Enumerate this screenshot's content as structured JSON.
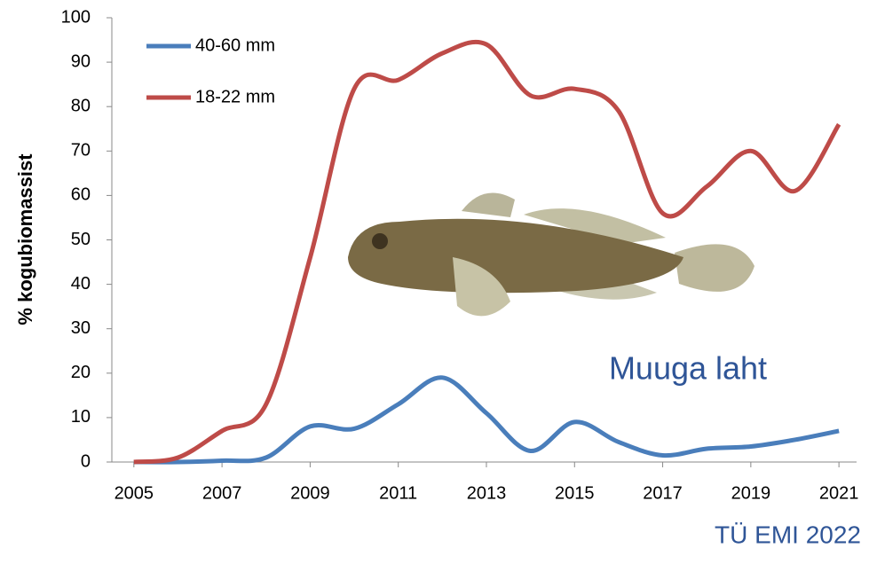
{
  "chart_data": {
    "type": "line",
    "y_label": "% kogubiomassist",
    "annotation": "Muuga laht",
    "source": "TÜ EMI 2022",
    "x": [
      2005,
      2006,
      2007,
      2008,
      2009,
      2010,
      2011,
      2012,
      2013,
      2014,
      2015,
      2016,
      2017,
      2018,
      2019,
      2020,
      2021
    ],
    "series": [
      {
        "name": "40-60 mm",
        "color": "#4a7ebb",
        "values": [
          0,
          0,
          0.3,
          1,
          8,
          7.5,
          13,
          19,
          11,
          2.5,
          9,
          4.5,
          1.5,
          3,
          3.5,
          5,
          7
        ]
      },
      {
        "name": "18-22 mm",
        "color": "#be4b48",
        "values": [
          0,
          1,
          7,
          13,
          46,
          84,
          86,
          92,
          94,
          82.5,
          84,
          79,
          56,
          62,
          70,
          61,
          76
        ]
      }
    ],
    "xlim": [
      2004.5,
      2021.4
    ],
    "xticks": [
      2005,
      2007,
      2009,
      2011,
      2013,
      2015,
      2017,
      2019,
      2021
    ],
    "ylim": [
      0,
      100
    ],
    "yticks": [
      0,
      10,
      20,
      30,
      40,
      50,
      60,
      70,
      80,
      90,
      100
    ],
    "legend": "top-left"
  }
}
